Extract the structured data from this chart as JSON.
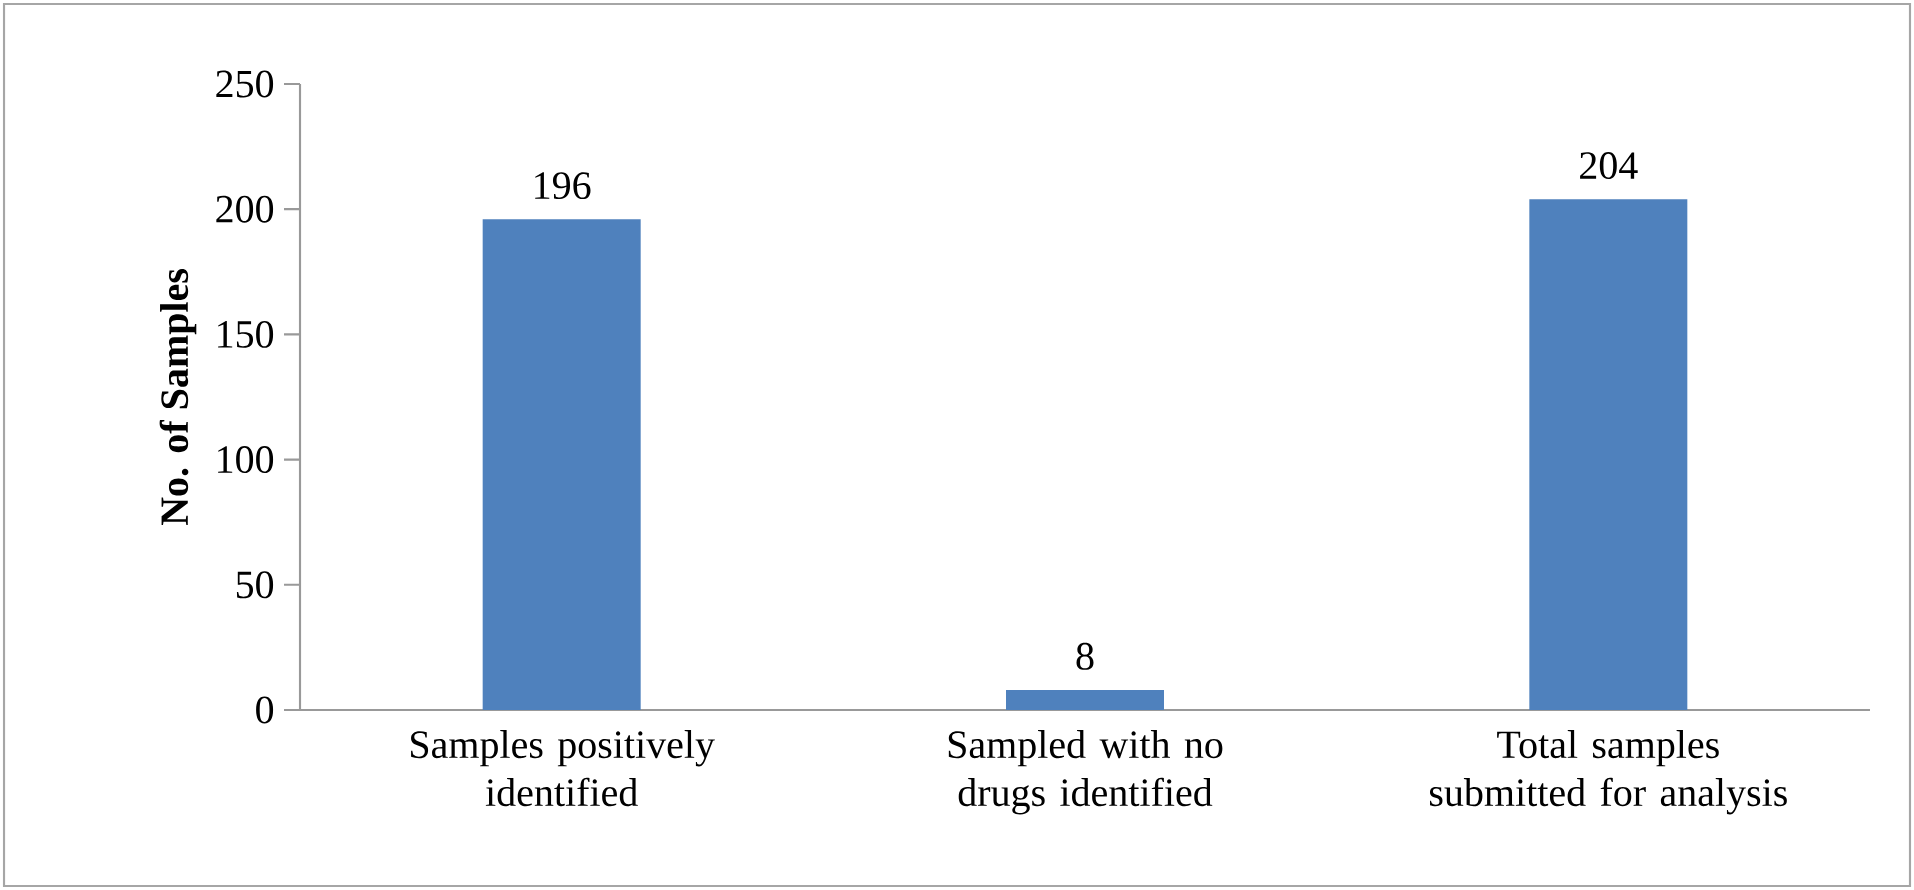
{
  "chart_data": {
    "type": "bar",
    "ylabel": "No. of Samples",
    "categories": [
      "Samples positively identified",
      "Sampled with no drugs identified",
      "Total samples submitted for analysis"
    ],
    "values": [
      196,
      8,
      204
    ],
    "color": "#4f81bd",
    "ylim": [
      0,
      250
    ],
    "yticks": [
      0,
      50,
      100,
      150,
      200,
      250
    ],
    "data_labels": true
  }
}
